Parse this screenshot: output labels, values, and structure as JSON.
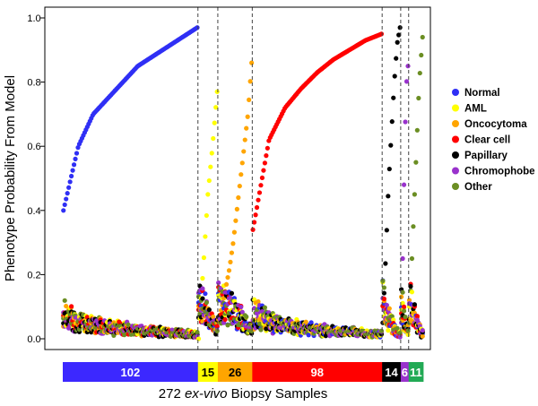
{
  "chart_data": {
    "type": "scatter",
    "ylabel": "Phenotype Probability From Model",
    "xlabel_prefix": "272 ",
    "xlabel_italic": "ex-vivo",
    "xlabel_suffix": " Biopsy Samples",
    "ylim": [
      0,
      1
    ],
    "yticks": [
      "0.0",
      "0.2",
      "0.4",
      "0.6",
      "0.8",
      "1.0"
    ],
    "total_samples": 272,
    "grid": false,
    "legend_position": "right",
    "series": [
      {
        "name": "Normal",
        "color": "#2f2ff5"
      },
      {
        "name": "AML",
        "color": "#ffff00"
      },
      {
        "name": "Oncocytoma",
        "color": "#ffa500"
      },
      {
        "name": "Clear cell",
        "color": "#ff0000"
      },
      {
        "name": "Papillary",
        "color": "#000000"
      },
      {
        "name": "Chromophobe",
        "color": "#9932cc"
      },
      {
        "name": "Other",
        "color": "#6b8e23"
      }
    ],
    "groups": [
      {
        "label": "102",
        "count": 102,
        "class": "Normal",
        "color": "#3c28ff",
        "text_color": "#ffffff",
        "own": [
          0.4,
          0.6,
          0.7,
          0.75,
          0.8,
          0.85,
          0.88,
          0.91,
          0.94,
          0.97
        ]
      },
      {
        "label": "15",
        "count": 15,
        "class": "AML",
        "color": "#ffff00",
        "text_color": "#000000",
        "own": [
          0.0,
          0.22,
          0.45,
          0.6,
          0.77
        ]
      },
      {
        "label": "26",
        "count": 26,
        "class": "Oncocytoma",
        "color": "#ffa500",
        "text_color": "#000000",
        "own": [
          0.06,
          0.1,
          0.16,
          0.22,
          0.3,
          0.4,
          0.5,
          0.6,
          0.7,
          0.86
        ]
      },
      {
        "label": "98",
        "count": 98,
        "class": "Clear cell",
        "color": "#ff0000",
        "text_color": "#ffffff",
        "own": [
          0.34,
          0.62,
          0.72,
          0.78,
          0.83,
          0.87,
          0.9,
          0.93,
          0.95
        ]
      },
      {
        "label": "14",
        "count": 14,
        "class": "Papillary",
        "color": "#000000",
        "text_color": "#ffffff",
        "own": [
          0.05,
          0.25,
          0.48,
          0.64,
          0.8,
          0.92,
          0.97
        ]
      },
      {
        "label": "6",
        "count": 6,
        "class": "Chromophobe",
        "color": "#9932cc",
        "text_color": "#ffffff",
        "own": [
          0.05,
          0.3,
          0.6,
          0.79,
          0.85
        ]
      },
      {
        "label": "11",
        "count": 11,
        "class": "Other",
        "color": "#22aa55",
        "text_color": "#ffffff",
        "own": [
          0.05,
          0.3,
          0.55,
          0.8,
          0.94
        ]
      }
    ]
  }
}
